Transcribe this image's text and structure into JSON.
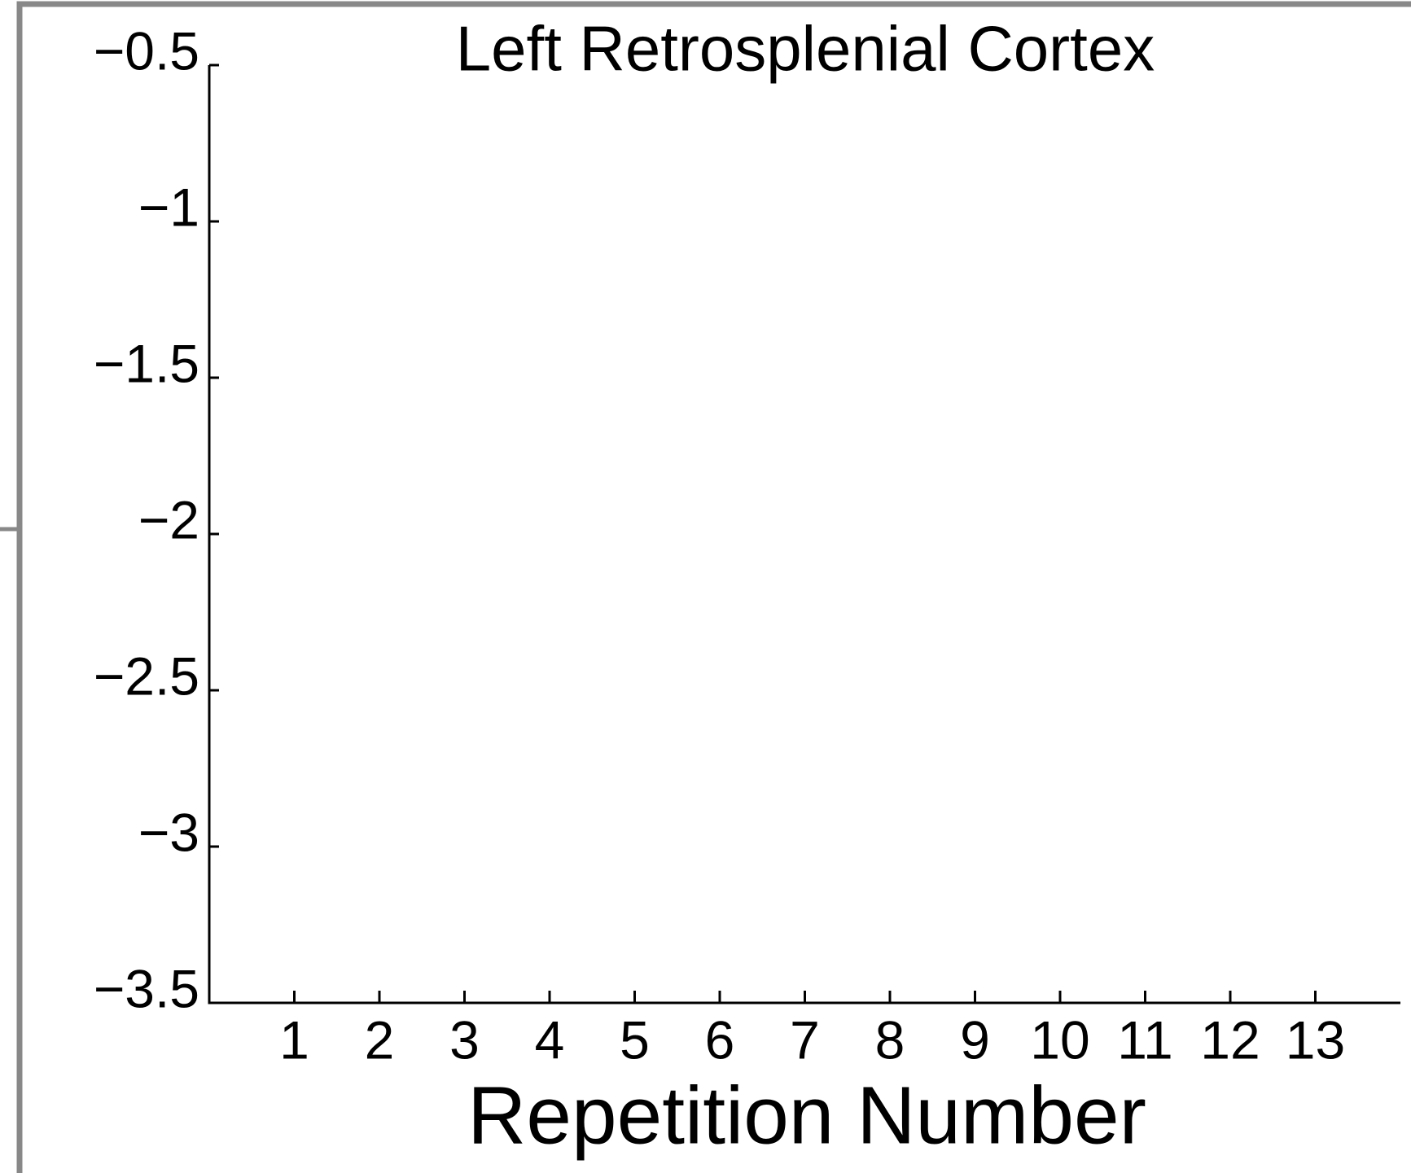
{
  "chart_data": {
    "type": "line",
    "title": "Left Retrosplenial Cortex",
    "x_label": "Repetition Number",
    "xlim": [
      0,
      14
    ],
    "xticks": [
      1,
      2,
      3,
      4,
      5,
      6,
      7,
      8,
      9,
      10,
      11,
      12,
      13
    ],
    "ylim": [
      -3.5,
      -0.5
    ],
    "yticks": [
      {
        "value": -0.5,
        "label": "−0.5"
      },
      {
        "value": -1,
        "label": "−1"
      },
      {
        "value": -1.5,
        "label": "−1.5"
      },
      {
        "value": -2,
        "label": "−2"
      },
      {
        "value": -2.5,
        "label": "−2.5"
      },
      {
        "value": -3,
        "label": "−3"
      },
      {
        "value": -3.5,
        "label": "−3.5"
      }
    ],
    "series": [],
    "grid": false
  }
}
